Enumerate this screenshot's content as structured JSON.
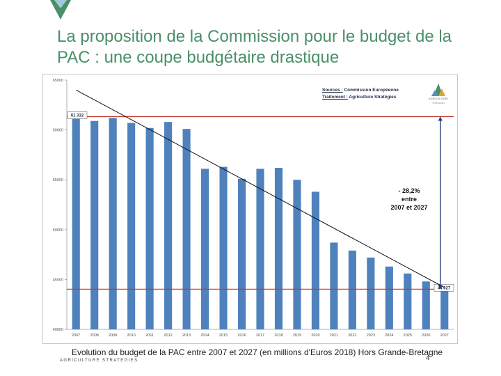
{
  "slide": {
    "title": "La proposition de la Commission pour le budget de la PAC : une coupe budgétaire drastique",
    "caption": "Evolution du budget de la PAC entre 2007 et 2027 (en millions d'Euros 2018) Hors Grande-Bretagne",
    "footer_brand": "AGRICULTURE STRATEGIES",
    "page_number": "4"
  },
  "sources": {
    "sources_label": "Sources :",
    "sources_value": "Commission Européenne",
    "traitement_label": "Traitement :",
    "traitement_value": "Agriculture Stratégies"
  },
  "logo": {
    "brand": "AGRICULTURE",
    "sub": "STRATEGIES"
  },
  "annotation": {
    "line1": "- 28,2%",
    "line2": "entre",
    "line3": "2007 et 2027"
  },
  "colors": {
    "title": "#4a8f68",
    "bar": "#4f81bd",
    "ref_line": "#c0392b",
    "arrow": "#1f3a7a"
  },
  "chart_data": {
    "type": "bar",
    "title": "",
    "xlabel": "",
    "ylabel": "",
    "categories": [
      "2007",
      "2008",
      "2009",
      "2010",
      "2011",
      "2012",
      "2013",
      "2014",
      "2015",
      "2016",
      "2017",
      "2018",
      "2019",
      "2020",
      "2021",
      "2022",
      "2023",
      "2024",
      "2025",
      "2026",
      "2027"
    ],
    "values": [
      61332,
      60900,
      61200,
      60700,
      60200,
      60800,
      60100,
      56100,
      56300,
      55100,
      56100,
      56200,
      55000,
      53800,
      48700,
      47900,
      47200,
      46300,
      45600,
      44800,
      44027
    ],
    "ylim": [
      40000,
      65000
    ],
    "yticks": [
      "40000",
      "45000",
      "50000",
      "55000",
      "60000",
      "65000"
    ],
    "reference_lines": [
      {
        "value": 61332,
        "label": "61 332"
      },
      {
        "value": 44027,
        "label": "44 027"
      }
    ],
    "trendline": {
      "from": [
        2007,
        64000
      ],
      "to": [
        2027,
        44200
      ]
    }
  }
}
